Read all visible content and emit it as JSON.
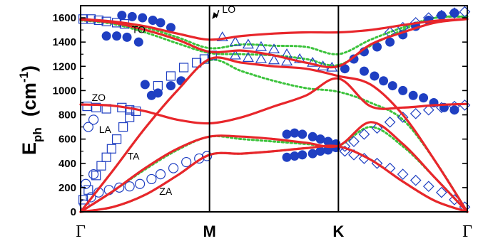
{
  "chart_data": {
    "type": "line",
    "title": "",
    "ylabel": {
      "main": "E",
      "sub": "ph",
      "unit_open": "(cm",
      "unit_exp": "-1",
      "unit_close": ")"
    },
    "ylim": [
      0,
      1700
    ],
    "yticks": [
      0,
      200,
      400,
      600,
      800,
      1000,
      1200,
      1400,
      1600
    ],
    "xlim": [
      0,
      3
    ],
    "xticks": [
      {
        "x": 0,
        "label": "Γ",
        "style": "symbol"
      },
      {
        "x": 1,
        "label": "M",
        "style": "bold"
      },
      {
        "x": 2,
        "label": "K",
        "style": "bold"
      },
      {
        "x": 3,
        "label": "Γ",
        "style": "symbol"
      }
    ],
    "high_symmetry_lines": [
      1,
      2
    ],
    "branch_labels": [
      {
        "text": "LO",
        "x": 1.15,
        "y": 1640,
        "arrow_to": [
          1.02,
          1590
        ]
      },
      {
        "text": "TO",
        "x": 0.45,
        "y": 1475
      },
      {
        "text": "ZO",
        "x": 0.14,
        "y": 915
      },
      {
        "text": "LA",
        "x": 0.19,
        "y": 650
      },
      {
        "text": "TA",
        "x": 0.41,
        "y": 430
      },
      {
        "text": "ZA",
        "x": 0.66,
        "y": 140
      }
    ],
    "colors": {
      "calc_solid": "#e8262b",
      "calc_dotted": "#3cc33c",
      "exp_markers": "#1f3fc2",
      "axes": "#000000"
    },
    "series": [
      {
        "style": "solid",
        "branch": "ZA",
        "x": [
          0,
          0.25,
          0.5,
          0.75,
          1,
          1.25,
          1.5,
          1.75,
          2,
          2.25,
          2.5,
          2.75,
          3
        ],
        "y": [
          0,
          40,
          140,
          300,
          470,
          480,
          500,
          525,
          540,
          430,
          250,
          90,
          0
        ]
      },
      {
        "style": "solid",
        "branch": "TA",
        "x": [
          0,
          0.25,
          0.5,
          0.75,
          1,
          1.25,
          1.5,
          1.75,
          2,
          2.25,
          2.5,
          2.75,
          3
        ],
        "y": [
          0,
          170,
          360,
          520,
          620,
          620,
          600,
          570,
          545,
          740,
          560,
          280,
          0
        ]
      },
      {
        "style": "solid",
        "branch": "LA",
        "x": [
          0,
          0.25,
          0.5,
          0.75,
          1,
          1.25,
          1.5,
          1.75,
          2,
          2.25,
          2.5,
          2.75,
          3
        ],
        "y": [
          0,
          340,
          690,
          1000,
          1260,
          1230,
          1200,
          1180,
          1120,
          1050,
          800,
          420,
          0
        ]
      },
      {
        "style": "solid",
        "branch": "ZO",
        "x": [
          0,
          0.25,
          0.5,
          0.75,
          1,
          1.25,
          1.5,
          1.75,
          2,
          2.25,
          2.5,
          2.75,
          3
        ],
        "y": [
          885,
          875,
          830,
          760,
          730,
          780,
          870,
          960,
          1100,
          870,
          860,
          880,
          890
        ]
      },
      {
        "style": "solid",
        "branch": "TO",
        "x": [
          0,
          0.25,
          0.5,
          0.75,
          1,
          1.25,
          1.5,
          1.75,
          2,
          2.25,
          2.5,
          2.75,
          3
        ],
        "y": [
          1585,
          1560,
          1500,
          1420,
          1320,
          1330,
          1290,
          1230,
          1200,
          1380,
          1480,
          1560,
          1590
        ]
      },
      {
        "style": "solid",
        "branch": "LO",
        "x": [
          0,
          0.25,
          0.5,
          0.75,
          1,
          1.25,
          1.5,
          1.75,
          2,
          2.25,
          2.5,
          2.75,
          3
        ],
        "y": [
          1590,
          1570,
          1530,
          1470,
          1420,
          1450,
          1470,
          1480,
          1480,
          1500,
          1540,
          1575,
          1590
        ]
      },
      {
        "style": "dotted",
        "branch": "ZA",
        "x": [
          0,
          0.25,
          0.5,
          0.75,
          1,
          1.25,
          1.5,
          1.75,
          2,
          2.25,
          2.5,
          2.75,
          3
        ],
        "y": [
          0,
          40,
          140,
          300,
          470,
          480,
          500,
          525,
          540,
          430,
          250,
          90,
          0
        ]
      },
      {
        "style": "dotted",
        "branch": "TA",
        "x": [
          0,
          0.25,
          0.5,
          0.75,
          1,
          1.25,
          1.5,
          1.75,
          2,
          2.25,
          2.5,
          2.75,
          3
        ],
        "y": [
          0,
          170,
          350,
          510,
          620,
          600,
          580,
          560,
          545,
          700,
          540,
          280,
          0
        ]
      },
      {
        "style": "dotted",
        "branch": "LA",
        "x": [
          0,
          0.25,
          0.5,
          0.75,
          1,
          1.25,
          1.5,
          1.75,
          2,
          2.25,
          2.5,
          2.75,
          3
        ],
        "y": [
          0,
          340,
          690,
          1000,
          1250,
          1160,
          1080,
          1020,
          990,
          900,
          760,
          420,
          0
        ]
      },
      {
        "style": "dotted",
        "branch": "TO",
        "x": [
          0,
          0.25,
          0.5,
          0.75,
          1,
          1.25,
          1.5,
          1.75,
          2,
          2.25,
          2.5,
          2.75,
          3
        ],
        "y": [
          1580,
          1550,
          1480,
          1390,
          1310,
          1300,
          1290,
          1260,
          1210,
          1370,
          1500,
          1600,
          1610
        ]
      },
      {
        "style": "dotted",
        "branch": "LO",
        "x": [
          0,
          0.25,
          0.5,
          0.75,
          1,
          1.25,
          1.5,
          1.75,
          2,
          2.25,
          2.5,
          2.75,
          3
        ],
        "y": [
          1580,
          1560,
          1520,
          1440,
          1350,
          1380,
          1370,
          1360,
          1300,
          1420,
          1520,
          1600,
          1610
        ]
      },
      {
        "style": "markers",
        "name": "",
        "symbol": "square-open",
        "points": [
          [
            0.02,
            100
          ],
          [
            0.06,
            180
          ],
          [
            0.12,
            300
          ],
          [
            0.16,
            380
          ],
          [
            0.2,
            450
          ],
          [
            0.24,
            520
          ],
          [
            0.28,
            600
          ],
          [
            0.33,
            700
          ],
          [
            0.38,
            780
          ],
          [
            0.43,
            830
          ],
          [
            0.02,
            1590
          ],
          [
            0.08,
            1590
          ],
          [
            0.14,
            1580
          ],
          [
            0.2,
            1570
          ],
          [
            0.28,
            1560
          ],
          [
            0.34,
            1550
          ],
          [
            0.05,
            870
          ],
          [
            0.12,
            860
          ],
          [
            0.2,
            850
          ],
          [
            0.6,
            1040
          ],
          [
            0.7,
            1120
          ],
          [
            0.8,
            1190
          ],
          [
            0.9,
            1230
          ],
          [
            0.96,
            1260
          ],
          [
            1.02,
            1290
          ],
          [
            0.32,
            860
          ],
          [
            0.38,
            840
          ]
        ]
      },
      {
        "style": "markers",
        "name": "",
        "symbol": "circle-open",
        "points": [
          [
            0.03,
            60
          ],
          [
            0.08,
            120
          ],
          [
            0.14,
            160
          ],
          [
            0.22,
            180
          ],
          [
            0.3,
            200
          ],
          [
            0.38,
            210
          ],
          [
            0.46,
            230
          ],
          [
            0.55,
            270
          ],
          [
            0.62,
            310
          ],
          [
            0.72,
            360
          ],
          [
            0.82,
            410
          ],
          [
            0.92,
            440
          ],
          [
            0.98,
            460
          ],
          [
            0.04,
            230
          ],
          [
            0.1,
            310
          ],
          [
            0.06,
            700
          ],
          [
            0.1,
            760
          ]
        ]
      },
      {
        "style": "markers",
        "name": "",
        "symbol": "circle-filled",
        "points": [
          [
            0.32,
            1620
          ],
          [
            0.4,
            1610
          ],
          [
            0.48,
            1600
          ],
          [
            0.56,
            1580
          ],
          [
            0.62,
            1560
          ],
          [
            0.7,
            1520
          ],
          [
            0.2,
            1450
          ],
          [
            0.28,
            1450
          ],
          [
            0.36,
            1440
          ],
          [
            0.45,
            1400
          ],
          [
            0.55,
            960
          ],
          [
            0.6,
            980
          ],
          [
            0.7,
            1040
          ],
          [
            0.78,
            1080
          ],
          [
            0.5,
            1050
          ],
          [
            1.6,
            640
          ],
          [
            1.66,
            650
          ],
          [
            1.72,
            640
          ],
          [
            1.8,
            620
          ],
          [
            1.86,
            600
          ],
          [
            1.92,
            580
          ],
          [
            1.98,
            560
          ],
          [
            1.6,
            450
          ],
          [
            1.66,
            460
          ],
          [
            1.72,
            470
          ],
          [
            1.8,
            480
          ],
          [
            1.86,
            500
          ],
          [
            1.92,
            510
          ],
          [
            1.98,
            530
          ],
          [
            2.05,
            1180
          ],
          [
            2.12,
            1260
          ],
          [
            2.2,
            1320
          ],
          [
            2.3,
            1360
          ],
          [
            2.4,
            1400
          ],
          [
            2.5,
            1460
          ],
          [
            2.6,
            1530
          ],
          [
            2.7,
            1580
          ],
          [
            2.8,
            1620
          ],
          [
            2.9,
            1640
          ],
          [
            2.2,
            1160
          ],
          [
            2.28,
            1120
          ],
          [
            2.35,
            1080
          ],
          [
            2.42,
            1040
          ],
          [
            2.5,
            1000
          ],
          [
            2.58,
            960
          ],
          [
            2.66,
            940
          ],
          [
            2.74,
            900
          ],
          [
            2.82,
            860
          ],
          [
            2.9,
            840
          ]
        ]
      },
      {
        "style": "markers",
        "name": "",
        "symbol": "triangle-open",
        "points": [
          [
            1.1,
            1440
          ],
          [
            1.2,
            1400
          ],
          [
            1.3,
            1380
          ],
          [
            1.4,
            1360
          ],
          [
            1.5,
            1340
          ],
          [
            1.6,
            1300
          ],
          [
            1.7,
            1260
          ],
          [
            1.8,
            1230
          ],
          [
            1.88,
            1200
          ],
          [
            1.95,
            1190
          ],
          [
            1.2,
            1290
          ],
          [
            1.3,
            1270
          ],
          [
            1.4,
            1260
          ],
          [
            1.5,
            1250
          ],
          [
            1.6,
            1240
          ]
        ]
      },
      {
        "style": "markers",
        "name": "",
        "symbol": "diamond-open",
        "points": [
          [
            2.05,
            540
          ],
          [
            2.12,
            580
          ],
          [
            2.2,
            640
          ],
          [
            2.3,
            690
          ],
          [
            2.4,
            740
          ],
          [
            2.5,
            780
          ],
          [
            2.6,
            810
          ],
          [
            2.7,
            840
          ],
          [
            2.8,
            860
          ],
          [
            2.9,
            870
          ],
          [
            2.98,
            880
          ],
          [
            2.05,
            500
          ],
          [
            2.12,
            470
          ],
          [
            2.2,
            440
          ],
          [
            2.3,
            400
          ],
          [
            2.4,
            360
          ],
          [
            2.5,
            310
          ],
          [
            2.6,
            260
          ],
          [
            2.7,
            210
          ],
          [
            2.8,
            160
          ],
          [
            2.9,
            100
          ],
          [
            2.98,
            40
          ],
          [
            2.4,
            1480
          ],
          [
            2.5,
            1520
          ],
          [
            2.6,
            1560
          ],
          [
            2.7,
            1600
          ],
          [
            2.8,
            1620
          ],
          [
            2.9,
            1640
          ],
          [
            2.98,
            1650
          ]
        ]
      }
    ]
  }
}
